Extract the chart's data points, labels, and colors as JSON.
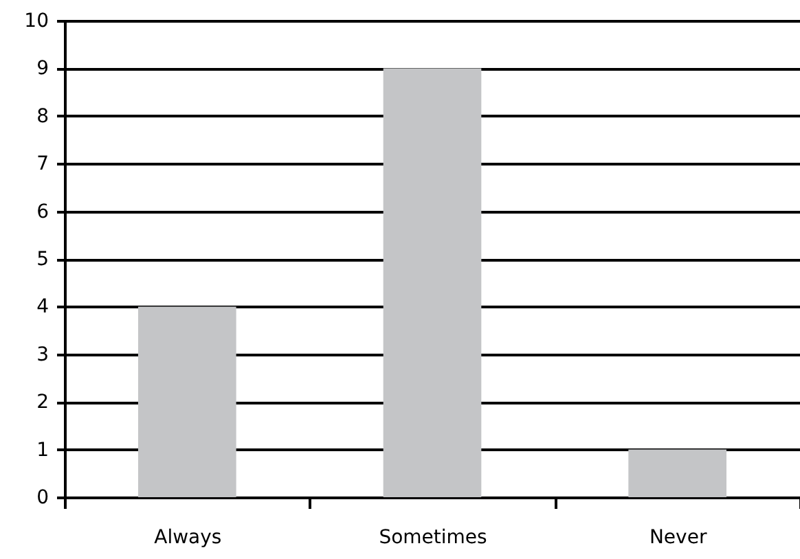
{
  "chart_data": {
    "type": "bar",
    "categories": [
      "Always",
      "Sometimes",
      "Never"
    ],
    "values": [
      4,
      9,
      1
    ],
    "color": "#c4c5c7",
    "ylim": [
      0,
      10
    ],
    "yticks": [
      0,
      1,
      2,
      3,
      4,
      5,
      6,
      7,
      8,
      9,
      10
    ],
    "grid": "y"
  }
}
